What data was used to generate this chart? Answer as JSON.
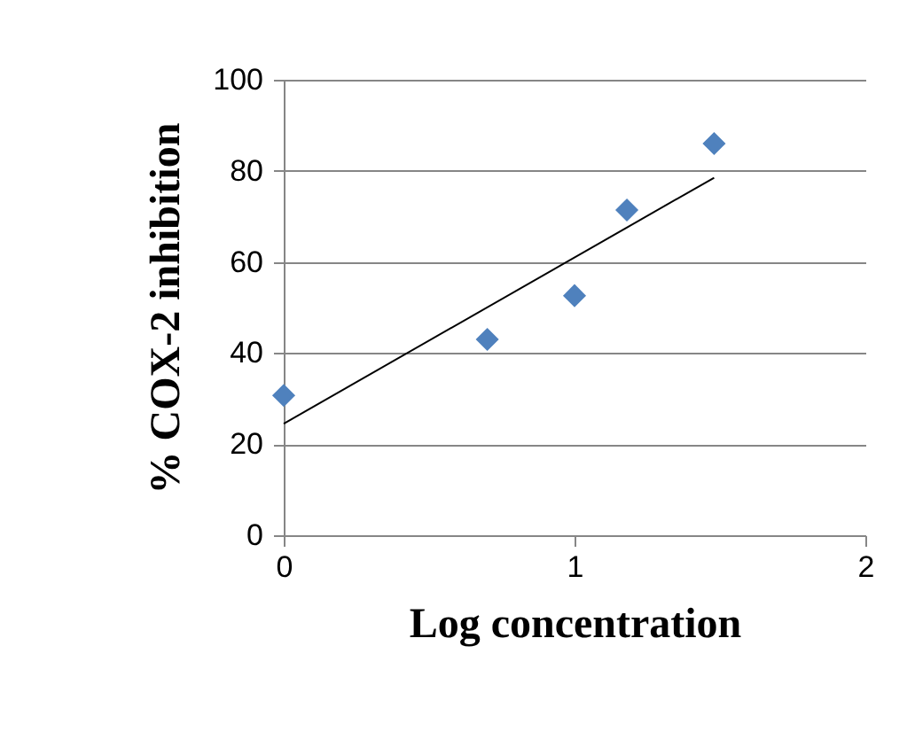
{
  "chart_data": {
    "type": "scatter",
    "xlabel": "Log concentration",
    "ylabel": "% COX-2  inhibition",
    "x": [
      0,
      0.7,
      1.0,
      1.18,
      1.48
    ],
    "series": [
      {
        "color": "#4f81bd",
        "marker": "diamond",
        "values": [
          30.7,
          43,
          52.6,
          71.4,
          86
        ]
      },
      {
        "type": "line",
        "color": "#000000",
        "marker": "none",
        "x": [
          0,
          1.48
        ],
        "values": [
          24.5,
          78.5
        ]
      }
    ],
    "xlim": [
      0,
      2
    ],
    "xticks": [
      0,
      1,
      2
    ],
    "ylim": [
      0,
      100
    ],
    "yticks": [
      0,
      20,
      40,
      60,
      80,
      100
    ],
    "grid": "y",
    "line_style": "solid"
  }
}
